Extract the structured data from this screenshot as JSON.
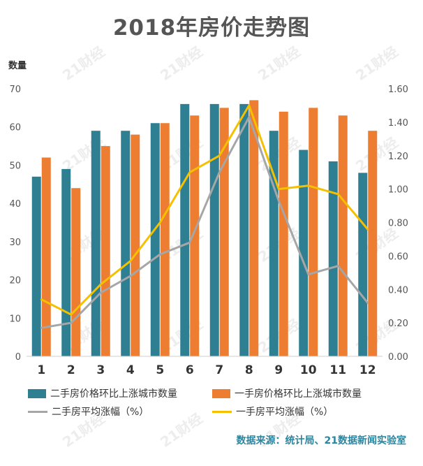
{
  "title": "2018年房价走势图",
  "watermark_text": "21财经",
  "source": "数据来源：统计局、21数据新闻实验室",
  "colors": {
    "second_hand_bar": "#2f7f93",
    "new_home_bar": "#ec7d31",
    "second_hand_line": "#a6a6a6",
    "new_home_line": "#f5c000",
    "axis_text": "#555555",
    "grid": "#e6e6e6"
  },
  "chart_data": {
    "type": "bar",
    "categories": [
      "1",
      "2",
      "3",
      "4",
      "5",
      "6",
      "7",
      "8",
      "9",
      "10",
      "11",
      "12"
    ],
    "ylabel": "数量",
    "ylim": [
      0,
      70
    ],
    "y_ticks": [
      "0",
      "10",
      "20",
      "30",
      "40",
      "50",
      "60",
      "70"
    ],
    "y2lim": [
      0,
      1.6
    ],
    "y2_ticks": [
      "0.00",
      "0.20",
      "0.40",
      "0.60",
      "0.80",
      "1.00",
      "1.20",
      "1.40",
      "1.60"
    ],
    "grid": false,
    "legend_position": "bottom",
    "series": [
      {
        "name": "二手房价格环比上涨城市数量",
        "type": "bar",
        "axis": "left",
        "values": [
          47,
          49,
          59,
          59,
          61,
          66,
          66,
          66,
          59,
          54,
          51,
          48
        ]
      },
      {
        "name": "一手房价格环比上涨城市数量",
        "type": "bar",
        "axis": "left",
        "values": [
          52,
          44,
          55,
          58,
          61,
          63,
          65,
          67,
          64,
          65,
          63,
          59
        ]
      },
      {
        "name": "二手房平均涨幅（%）",
        "type": "line",
        "axis": "right",
        "values": [
          0.17,
          0.2,
          0.38,
          0.48,
          0.61,
          0.68,
          1.1,
          1.43,
          0.93,
          0.49,
          0.54,
          0.32
        ]
      },
      {
        "name": "一手房平均涨幅（%）",
        "type": "line",
        "axis": "right",
        "values": [
          0.34,
          0.25,
          0.43,
          0.57,
          0.8,
          1.1,
          1.2,
          1.5,
          1.0,
          1.02,
          0.97,
          0.76
        ]
      }
    ]
  }
}
